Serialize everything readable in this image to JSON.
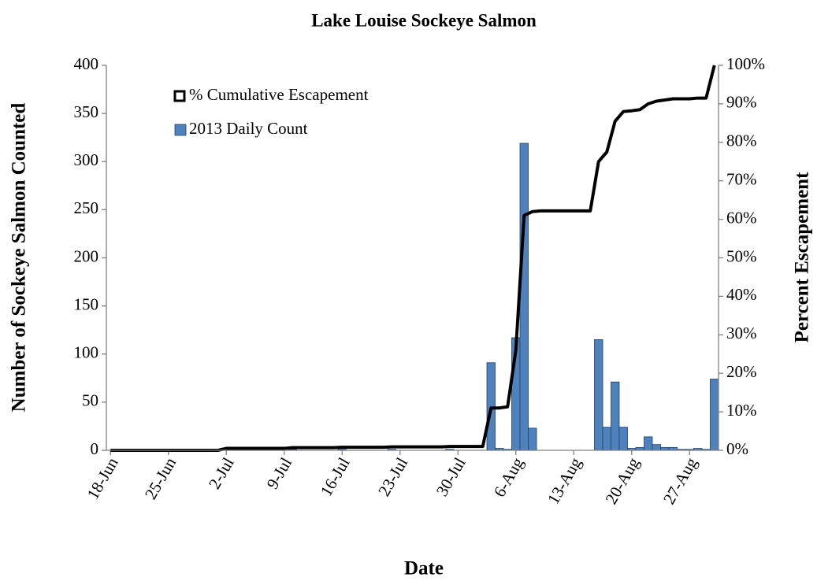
{
  "chart_data": {
    "type": "combo",
    "title": "Lake Louise Sockeye Salmon",
    "xlabel": "Date",
    "ylabel": "Number of Sockeye Salmon Counted",
    "y2label": "Percent Escapement",
    "categories": [
      "18-Jun",
      null,
      null,
      null,
      null,
      null,
      null,
      "25-Jun",
      null,
      null,
      null,
      null,
      null,
      null,
      "2-Jul",
      null,
      null,
      null,
      null,
      null,
      null,
      "9-Jul",
      null,
      null,
      null,
      null,
      null,
      null,
      "16-Jul",
      null,
      null,
      null,
      null,
      null,
      null,
      "23-Jul",
      null,
      null,
      null,
      null,
      null,
      null,
      "30-Jul",
      null,
      null,
      null,
      null,
      null,
      null,
      "6-Aug",
      null,
      null,
      null,
      null,
      null,
      null,
      "13-Aug",
      null,
      null,
      null,
      null,
      null,
      null,
      "20-Aug",
      null,
      null,
      null,
      null,
      null,
      null,
      "27-Aug",
      null,
      null,
      null
    ],
    "series": [
      {
        "name": "% Cumulative Escapement",
        "type": "line",
        "axis": "y2",
        "color": "#000000",
        "values": [
          0,
          0,
          0,
          0,
          0,
          0,
          0,
          0,
          0,
          0,
          0,
          0,
          0,
          0,
          0.5,
          0.5,
          0.5,
          0.5,
          0.5,
          0.5,
          0.5,
          0.5,
          0.7,
          0.7,
          0.7,
          0.7,
          0.7,
          0.7,
          0.8,
          0.8,
          0.8,
          0.8,
          0.8,
          0.8,
          0.9,
          0.9,
          0.9,
          0.9,
          0.9,
          0.9,
          0.9,
          1,
          1,
          1,
          1,
          1,
          11,
          11,
          11.3,
          26,
          61,
          62,
          62.2,
          62.2,
          62.2,
          62.2,
          62.2,
          62.2,
          62.2,
          75,
          77.5,
          85.5,
          88,
          88.2,
          88.5,
          90,
          90.7,
          91,
          91.3,
          91.3,
          91.3,
          91.5,
          91.5,
          100
        ]
      },
      {
        "name": "2013 Daily Count",
        "type": "bar",
        "color": "#4f81bd",
        "values": [
          0,
          0,
          0,
          0,
          0,
          0,
          0,
          0,
          0,
          0,
          0,
          0,
          0,
          0,
          1,
          0,
          0,
          0,
          0,
          0,
          0,
          0,
          1,
          0,
          0,
          0,
          0,
          0,
          1,
          0,
          0,
          0,
          0,
          0,
          1,
          0,
          0,
          0,
          0,
          0,
          0,
          1,
          0,
          0,
          0,
          0,
          91,
          2,
          1,
          117,
          319,
          23,
          0,
          0,
          0,
          0,
          0,
          0,
          0,
          115,
          24,
          71,
          24,
          2,
          3,
          14,
          6,
          3,
          3,
          1,
          1,
          2,
          1,
          74
        ]
      }
    ],
    "ylim": [
      0,
      400
    ],
    "yticks": [
      0,
      50,
      100,
      150,
      200,
      250,
      300,
      350,
      400
    ],
    "y2lim": [
      0,
      100
    ],
    "y2ticks": [
      {
        "value": 0,
        "label": "0%"
      },
      {
        "value": 10,
        "label": "10%"
      },
      {
        "value": 20,
        "label": "20%"
      },
      {
        "value": 30,
        "label": "30%"
      },
      {
        "value": 40,
        "label": "40%"
      },
      {
        "value": 50,
        "label": "50%"
      },
      {
        "value": 60,
        "label": "60%"
      },
      {
        "value": 70,
        "label": "70%"
      },
      {
        "value": 80,
        "label": "80%"
      },
      {
        "value": 90,
        "label": "90%"
      },
      {
        "value": 100,
        "label": "100%"
      }
    ],
    "legend": "upper left",
    "grid": false
  }
}
